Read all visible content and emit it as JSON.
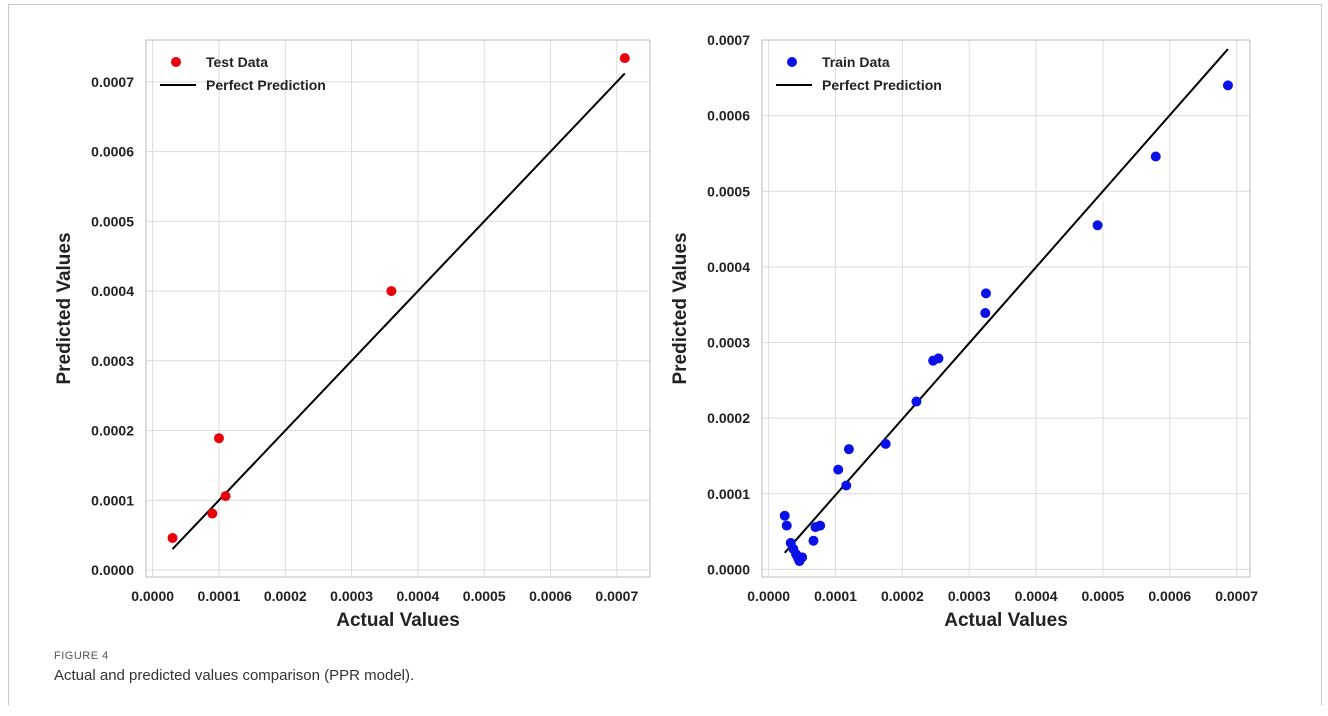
{
  "figure": {
    "label": "FIGURE 4",
    "caption": "Actual and predicted values comparison (PPR model)."
  },
  "chart_data": [
    {
      "type": "scatter",
      "xlabel": "Actual Values",
      "ylabel": "Predicted Values",
      "xlim": [
        -1e-05,
        0.00075
      ],
      "ylim": [
        -1e-05,
        0.00076
      ],
      "xticks": [
        0,
        0.0001,
        0.0002,
        0.0003,
        0.0004,
        0.0005,
        0.0006,
        0.0007
      ],
      "yticks": [
        0,
        0.0001,
        0.0002,
        0.0003,
        0.0004,
        0.0005,
        0.0006,
        0.0007
      ],
      "tick_labels_x": [
        "0.0000",
        "0.0001",
        "0.0002",
        "0.0003",
        "0.0004",
        "0.0005",
        "0.0006",
        "0.0007"
      ],
      "tick_labels_y": [
        "0.0000",
        "0.0001",
        "0.0002",
        "0.0003",
        "0.0004",
        "0.0005",
        "0.0006",
        "0.0007"
      ],
      "grid": true,
      "legend": "top-left",
      "series": [
        {
          "name": "Test Data",
          "kind": "scatter",
          "color": "#e8000b",
          "points": [
            [
              3e-05,
              4.6e-05
            ],
            [
              9e-05,
              8.1e-05
            ],
            [
              0.0001,
              0.000189
            ],
            [
              0.00011,
              0.000106
            ],
            [
              0.00036,
              0.0004
            ],
            [
              0.000712,
              0.000734
            ]
          ]
        },
        {
          "name": "Perfect Prediction",
          "kind": "line",
          "color": "#000000",
          "points": [
            [
              3e-05,
              3e-05
            ],
            [
              0.000712,
              0.000712
            ]
          ]
        }
      ]
    },
    {
      "type": "scatter",
      "xlabel": "Actual Values",
      "ylabel": "Predicted Values",
      "xlim": [
        -1e-05,
        0.00072
      ],
      "ylim": [
        -1e-05,
        0.0007
      ],
      "xticks": [
        0,
        0.0001,
        0.0002,
        0.0003,
        0.0004,
        0.0005,
        0.0006,
        0.0007
      ],
      "yticks": [
        0,
        0.0001,
        0.0002,
        0.0003,
        0.0004,
        0.0005,
        0.0006,
        0.0007
      ],
      "tick_labels_x": [
        "0.0000",
        "0.0001",
        "0.0002",
        "0.0003",
        "0.0004",
        "0.0005",
        "0.0006",
        "0.0007"
      ],
      "tick_labels_y": [
        "0.0000",
        "0.0001",
        "0.0002",
        "0.0003",
        "0.0004",
        "0.0005",
        "0.0006",
        "0.0007"
      ],
      "grid": true,
      "legend": "top-left",
      "series": [
        {
          "name": "Train Data",
          "kind": "scatter",
          "color": "#0a10e8",
          "points": [
            [
              2.4e-05,
              7.1e-05
            ],
            [
              2.7e-05,
              5.8e-05
            ],
            [
              3.3e-05,
              3.5e-05
            ],
            [
              3.7e-05,
              2.7e-05
            ],
            [
              4.1e-05,
              2e-05
            ],
            [
              4.4e-05,
              1.5e-05
            ],
            [
              4.6e-05,
              1.1e-05
            ],
            [
              5e-05,
              1.6e-05
            ],
            [
              6.7e-05,
              3.8e-05
            ],
            [
              7e-05,
              5.6e-05
            ],
            [
              7.7e-05,
              5.8e-05
            ],
            [
              0.000104,
              0.000132
            ],
            [
              0.000116,
              0.000111
            ],
            [
              0.00012,
              0.000159
            ],
            [
              0.000175,
              0.000166
            ],
            [
              0.000221,
              0.000222
            ],
            [
              0.000246,
              0.000276
            ],
            [
              0.000254,
              0.000279
            ],
            [
              0.000324,
              0.000339
            ],
            [
              0.000325,
              0.000365
            ],
            [
              0.000492,
              0.000455
            ],
            [
              0.000579,
              0.000546
            ],
            [
              0.000687,
              0.00064
            ]
          ]
        },
        {
          "name": "Perfect Prediction",
          "kind": "line",
          "color": "#000000",
          "points": [
            [
              2.4e-05,
              2.2e-05
            ],
            [
              0.000687,
              0.000688
            ]
          ]
        }
      ]
    }
  ]
}
